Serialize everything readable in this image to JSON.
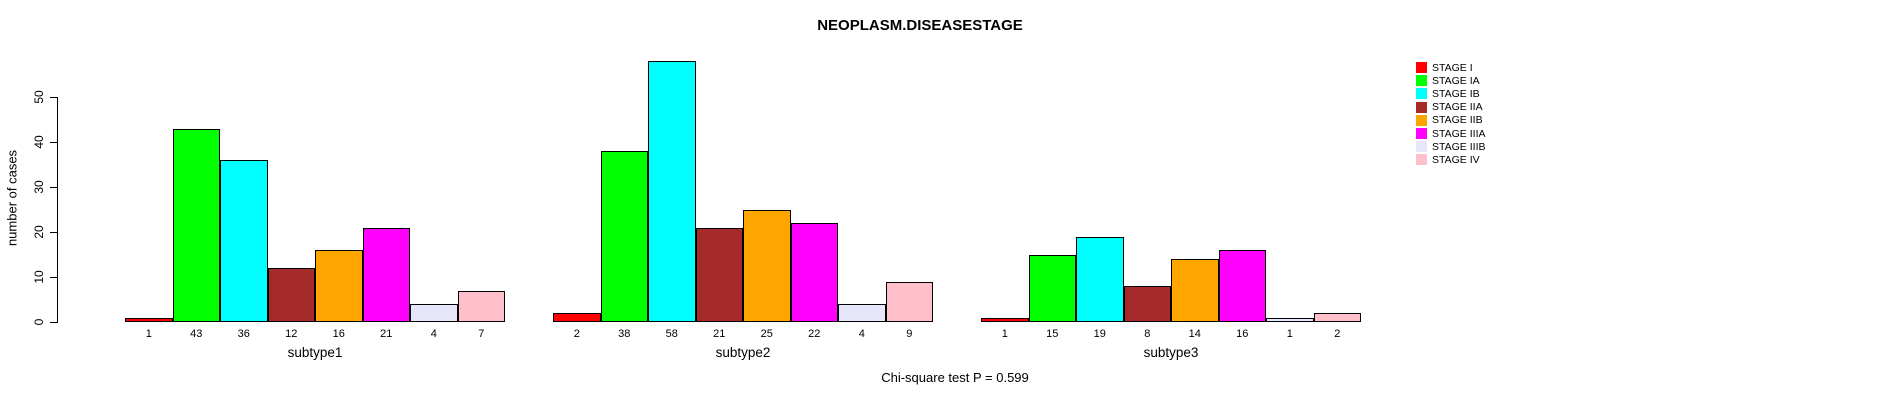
{
  "title": "NEOPLASM.DISEASESTAGE",
  "footer": "Chi-square test P = 0.599",
  "y_axis": {
    "label": "number of cases",
    "ticks": [
      0,
      10,
      20,
      30,
      40,
      50
    ]
  },
  "legend": {
    "position": "right",
    "entries": [
      {
        "label": "STAGE I",
        "color": "#FF0000"
      },
      {
        "label": "STAGE IA",
        "color": "#00FF00"
      },
      {
        "label": "STAGE IB",
        "color": "#00FFFF"
      },
      {
        "label": "STAGE IIA",
        "color": "#A52A2A"
      },
      {
        "label": "STAGE IIB",
        "color": "#FFA500"
      },
      {
        "label": "STAGE IIIA",
        "color": "#FF00FF"
      },
      {
        "label": "STAGE IIIB",
        "color": "#E6E6FA"
      },
      {
        "label": "STAGE IV",
        "color": "#FFC0CB"
      }
    ]
  },
  "chart_data": {
    "type": "bar",
    "title": "NEOPLASM.DISEASESTAGE",
    "xlabel": "",
    "ylabel": "number of cases",
    "ylim": [
      0,
      58
    ],
    "y_ticks": [
      0,
      10,
      20,
      30,
      40,
      50
    ],
    "grid": false,
    "legend_position": "right",
    "bar_labels_shown": true,
    "categories": [
      "subtype1",
      "subtype2",
      "subtype3"
    ],
    "series": [
      {
        "name": "STAGE I",
        "color": "#FF0000",
        "values": [
          1,
          2,
          1
        ]
      },
      {
        "name": "STAGE IA",
        "color": "#00FF00",
        "values": [
          43,
          38,
          15
        ]
      },
      {
        "name": "STAGE IB",
        "color": "#00FFFF",
        "values": [
          36,
          58,
          19
        ]
      },
      {
        "name": "STAGE IIA",
        "color": "#A52A2A",
        "values": [
          12,
          21,
          8
        ]
      },
      {
        "name": "STAGE IIB",
        "color": "#FFA500",
        "values": [
          16,
          25,
          14
        ]
      },
      {
        "name": "STAGE IIIA",
        "color": "#FF00FF",
        "values": [
          21,
          22,
          16
        ]
      },
      {
        "name": "STAGE IIIB",
        "color": "#E6E6FA",
        "values": [
          4,
          4,
          1
        ]
      },
      {
        "name": "STAGE IV",
        "color": "#FFC0CB",
        "values": [
          7,
          9,
          2
        ]
      }
    ],
    "annotation": "Chi-square test P = 0.599"
  }
}
